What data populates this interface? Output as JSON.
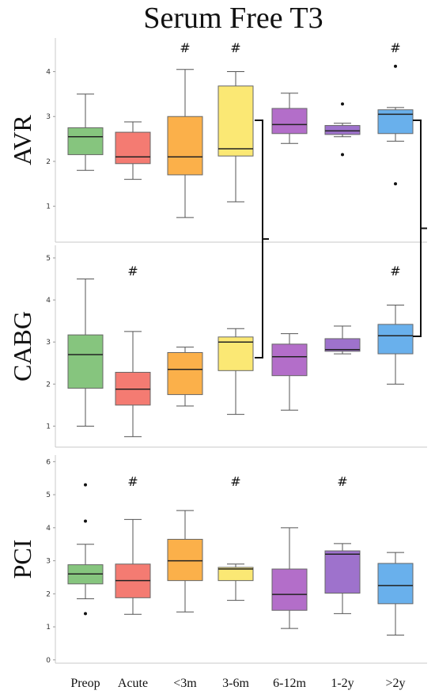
{
  "chart_data": {
    "type": "box",
    "title": "Serum Free T3",
    "categories": [
      "Preop",
      "Acute",
      "<3m",
      "3-6m",
      "6-12m",
      "1-2y",
      ">2y"
    ],
    "colors": [
      "#86c57e",
      "#f47b72",
      "#fbb04a",
      "#fbe874",
      "#b36ec9",
      "#9e72cc",
      "#69b0ec"
    ],
    "bracket_symbol": "]",
    "panels": [
      {
        "name": "AVR",
        "ylim": [
          0.2,
          4.75
        ],
        "yticks": [
          1,
          2,
          3,
          4
        ],
        "boxes": [
          {
            "q1": 2.15,
            "median": 2.55,
            "q3": 2.75,
            "whisker_low": 1.8,
            "whisker_high": 3.5,
            "outliers": []
          },
          {
            "q1": 1.95,
            "median": 2.1,
            "q3": 2.65,
            "whisker_low": 1.6,
            "whisker_high": 2.88,
            "outliers": []
          },
          {
            "q1": 1.7,
            "median": 2.1,
            "q3": 3.0,
            "whisker_low": 0.75,
            "whisker_high": 4.05,
            "outliers": []
          },
          {
            "q1": 2.12,
            "median": 2.28,
            "q3": 3.68,
            "whisker_low": 1.1,
            "whisker_high": 4.0,
            "outliers": []
          },
          {
            "q1": 2.62,
            "median": 2.82,
            "q3": 3.18,
            "whisker_low": 2.4,
            "whisker_high": 3.52,
            "outliers": []
          },
          {
            "q1": 2.6,
            "median": 2.68,
            "q3": 2.8,
            "whisker_low": 2.55,
            "whisker_high": 2.85,
            "outliers": [
              3.28,
              2.15
            ]
          },
          {
            "q1": 2.62,
            "median": 3.05,
            "q3": 3.15,
            "whisker_low": 2.45,
            "whisker_high": 3.2,
            "outliers": [
              4.12,
              1.5
            ]
          }
        ],
        "hash": [
          "",
          "",
          "#",
          "#",
          "",
          "",
          "#"
        ]
      },
      {
        "name": "CABG",
        "ylim": [
          0.5,
          5.3
        ],
        "yticks": [
          1,
          2,
          3,
          4,
          5
        ],
        "boxes": [
          {
            "q1": 1.9,
            "median": 2.7,
            "q3": 3.17,
            "whisker_low": 1.0,
            "whisker_high": 4.5,
            "outliers": []
          },
          {
            "q1": 1.5,
            "median": 1.88,
            "q3": 2.28,
            "whisker_low": 0.75,
            "whisker_high": 3.25,
            "outliers": []
          },
          {
            "q1": 1.75,
            "median": 2.35,
            "q3": 2.75,
            "whisker_low": 1.48,
            "whisker_high": 2.88,
            "outliers": []
          },
          {
            "q1": 2.32,
            "median": 3.0,
            "q3": 3.12,
            "whisker_low": 1.28,
            "whisker_high": 3.32,
            "outliers": []
          },
          {
            "q1": 2.2,
            "median": 2.65,
            "q3": 2.95,
            "whisker_low": 1.38,
            "whisker_high": 3.2,
            "outliers": []
          },
          {
            "q1": 2.78,
            "median": 2.82,
            "q3": 3.08,
            "whisker_low": 2.72,
            "whisker_high": 3.38,
            "outliers": []
          },
          {
            "q1": 2.72,
            "median": 3.15,
            "q3": 3.42,
            "whisker_low": 2.0,
            "whisker_high": 3.88,
            "outliers": []
          }
        ],
        "hash": [
          "",
          "#",
          "",
          "",
          "",
          "",
          "#"
        ]
      },
      {
        "name": "PCI",
        "ylim": [
          -0.1,
          6.2
        ],
        "yticks": [
          0,
          1,
          2,
          3,
          4,
          5,
          6
        ],
        "boxes": [
          {
            "q1": 2.3,
            "median": 2.6,
            "q3": 2.88,
            "whisker_low": 1.85,
            "whisker_high": 3.5,
            "outliers": [
              5.3,
              4.2,
              1.4
            ]
          },
          {
            "q1": 1.88,
            "median": 2.4,
            "q3": 2.9,
            "whisker_low": 1.38,
            "whisker_high": 4.25,
            "outliers": []
          },
          {
            "q1": 2.4,
            "median": 3.0,
            "q3": 3.65,
            "whisker_low": 1.45,
            "whisker_high": 4.52,
            "outliers": []
          },
          {
            "q1": 2.4,
            "median": 2.75,
            "q3": 2.8,
            "whisker_low": 1.8,
            "whisker_high": 2.9,
            "outliers": []
          },
          {
            "q1": 1.5,
            "median": 1.98,
            "q3": 2.75,
            "whisker_low": 0.95,
            "whisker_high": 4.0,
            "outliers": []
          },
          {
            "q1": 2.02,
            "median": 3.2,
            "q3": 3.3,
            "whisker_low": 1.4,
            "whisker_high": 3.52,
            "outliers": []
          },
          {
            "q1": 1.7,
            "median": 2.25,
            "q3": 2.92,
            "whisker_low": 0.75,
            "whisker_high": 3.25,
            "outliers": []
          }
        ],
        "hash": [
          "",
          "#",
          "",
          "#",
          "",
          "#",
          ""
        ]
      }
    ]
  }
}
